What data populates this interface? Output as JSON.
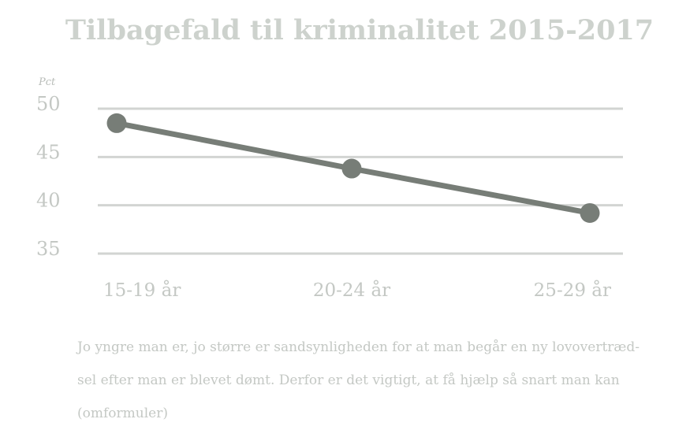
{
  "chart_data": {
    "type": "line",
    "title": "Tilbagefald til kriminalitet 2015-2017",
    "ylabel": "Pct",
    "xlabel": "",
    "categories": [
      "15-19 år",
      "20-24 år",
      "25-29 år"
    ],
    "series": [
      {
        "values": [
          48.5,
          43.8,
          39.2
        ]
      }
    ],
    "ylim": [
      35,
      50
    ],
    "yticks": [
      50,
      45,
      40,
      35
    ],
    "grid": true,
    "legend": "none",
    "colors": {
      "line": "#777d77",
      "grid": "#d2d4d2",
      "text": "#c4c8c4",
      "title": "#cdd2cd"
    }
  },
  "caption": {
    "lines": [
      "Jo yngre man er, jo større er sandsynligheden for at man begår en ny lovovertræd-",
      "sel efter man er blevet dømt. Derfor er det vigtigt, at få hjælp så snart man kan",
      "(omformuler)"
    ]
  }
}
